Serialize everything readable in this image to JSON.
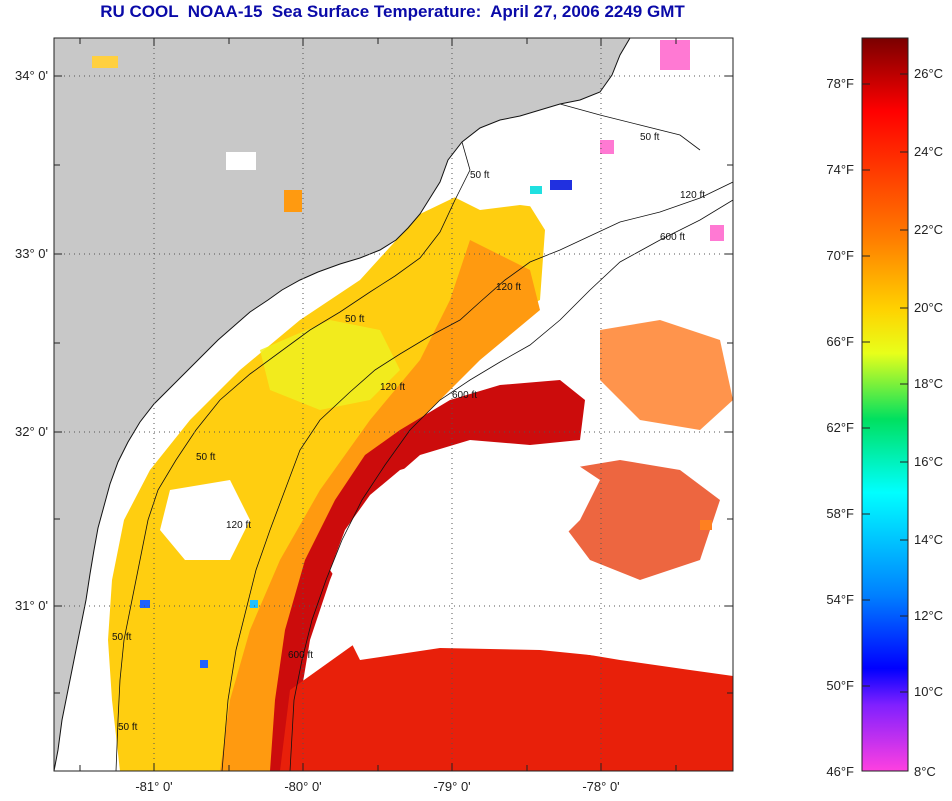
{
  "title": "RU COOL  NOAA-15  Sea Surface Temperature:  April 27, 2006 2249 GMT",
  "map": {
    "lat_labels": [
      "34° 0'",
      "33° 0'",
      "32° 0'",
      "31° 0'"
    ],
    "lon_labels": [
      "-81° 0'",
      "-80° 0'",
      "-79° 0'",
      "-78° 0'"
    ],
    "contour_labels": [
      "50 ft",
      "50 ft",
      "50 ft",
      "50 ft",
      "50 ft",
      "120 ft",
      "120 ft",
      "120 ft",
      "120 ft",
      "600 ft",
      "600 ft",
      "600 ft",
      "50 ft"
    ],
    "colors": {
      "land": "#c8c8c8",
      "cloud": "#ffffff",
      "warm": "#c80000",
      "mid": "#ff8000",
      "cool": "#ffd000"
    }
  },
  "colorbar": {
    "fahrenheit_labels": [
      "78°F",
      "74°F",
      "70°F",
      "66°F",
      "62°F",
      "58°F",
      "54°F",
      "50°F",
      "46°F"
    ],
    "celsius_labels": [
      "26°C",
      "24°C",
      "22°C",
      "20°C",
      "18°C",
      "16°C",
      "14°C",
      "12°C",
      "10°C",
      "8°C"
    ],
    "gradient_stops": [
      "#7a0000",
      "#ff0000",
      "#ff7a00",
      "#ffd200",
      "#e8ff1a",
      "#00e060",
      "#00ffff",
      "#0080ff",
      "#0000ff",
      "#8020ff",
      "#ff40e0"
    ]
  }
}
